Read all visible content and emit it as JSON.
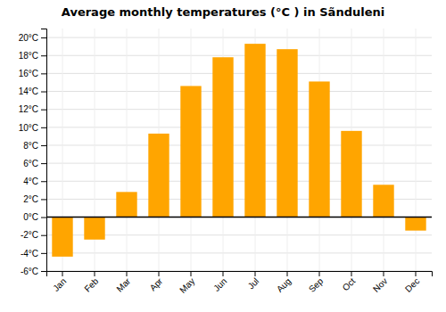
{
  "chart_data": {
    "type": "bar",
    "title": "Average monthly temperatures (°C ) in Sãnduleni",
    "categories": [
      "Jan",
      "Feb",
      "Mar",
      "Apr",
      "May",
      "Jun",
      "Jul",
      "Aug",
      "Sep",
      "Oct",
      "Nov",
      "Dec"
    ],
    "values": [
      -4.4,
      -2.5,
      2.8,
      9.3,
      14.6,
      17.8,
      19.3,
      18.7,
      15.1,
      9.6,
      3.6,
      -1.5
    ],
    "color": "#FFA500",
    "ylim": [
      -6,
      21
    ],
    "yticks": [
      {
        "value": -6,
        "label": "-6°C"
      },
      {
        "value": -4,
        "label": "-4°C"
      },
      {
        "value": -2,
        "label": "-2°C"
      },
      {
        "value": 0,
        "label": "0°C"
      },
      {
        "value": 2,
        "label": "2°C"
      },
      {
        "value": 4,
        "label": "4°C"
      },
      {
        "value": 6,
        "label": "6°C"
      },
      {
        "value": 8,
        "label": "8°C"
      },
      {
        "value": 10,
        "label": "10°C"
      },
      {
        "value": 12,
        "label": "12°C"
      },
      {
        "value": 14,
        "label": "14°C"
      },
      {
        "value": 16,
        "label": "16°C"
      },
      {
        "value": 18,
        "label": "18°C"
      },
      {
        "value": 20,
        "label": "20°C"
      }
    ],
    "grid": true
  }
}
